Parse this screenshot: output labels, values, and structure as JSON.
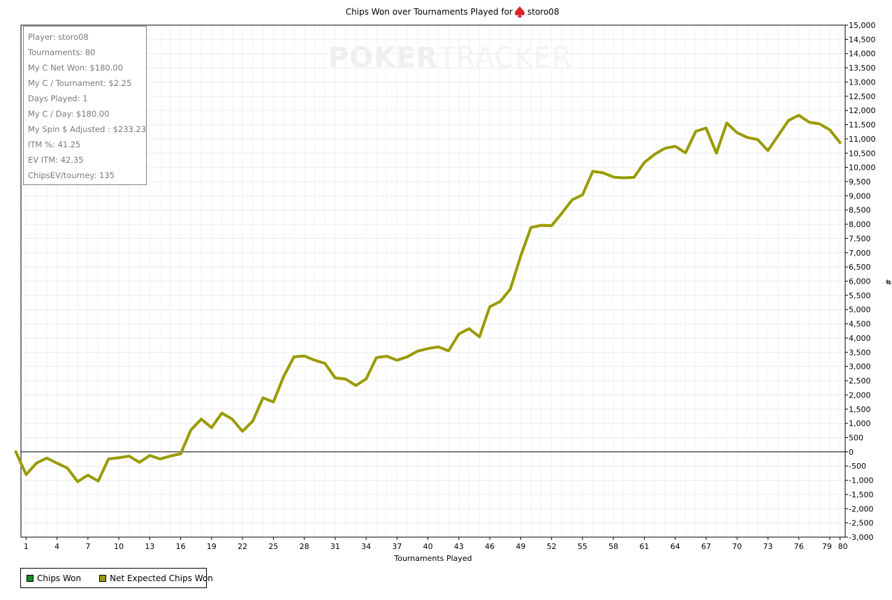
{
  "chart_data": {
    "type": "line",
    "title_prefix": "Chips Won over Tournaments Played for",
    "title_player": "storo08",
    "title_icon": "spade-icon",
    "xlabel": "Tournaments Played",
    "ylabel": "#",
    "xlim": [
      0.5,
      80.5
    ],
    "ylim": [
      -3000,
      15000
    ],
    "y_tick_step": 500,
    "x_ticks": [
      1,
      4,
      7,
      10,
      13,
      16,
      19,
      22,
      25,
      28,
      31,
      34,
      37,
      40,
      43,
      46,
      49,
      52,
      55,
      58,
      61,
      64,
      67,
      70,
      73,
      76,
      79,
      80
    ],
    "x_tick_labels": [
      "1",
      "4",
      "7",
      "10",
      "13",
      "16",
      "19",
      "22",
      "25",
      "28",
      "31",
      "34",
      "37",
      "40",
      "43",
      "46",
      "49",
      "52",
      "55",
      "58",
      "61",
      "64",
      "67",
      "70",
      "73",
      "76",
      "79",
      "80"
    ],
    "grid": true,
    "legend_position": "bottom-left",
    "series": [
      {
        "name": "Chips Won",
        "color": "#1a8a1a",
        "values": []
      },
      {
        "name": "Net Expected Chips Won",
        "color": "#9a9a00",
        "x": [
          0,
          1,
          2,
          3,
          4,
          5,
          6,
          7,
          8,
          9,
          10,
          11,
          12,
          13,
          14,
          15,
          16,
          17,
          18,
          19,
          20,
          21,
          22,
          23,
          24,
          25,
          26,
          27,
          28,
          29,
          30,
          31,
          32,
          33,
          34,
          35,
          36,
          37,
          38,
          39,
          40,
          41,
          42,
          43,
          44,
          45,
          46,
          47,
          48,
          49,
          50,
          51,
          52,
          53,
          54,
          55,
          56,
          57,
          58,
          59,
          60,
          61,
          62,
          63,
          64,
          65,
          66,
          67,
          68,
          69,
          70,
          71,
          72,
          73,
          74,
          75,
          76,
          77,
          78,
          79,
          80
        ],
        "values": [
          0,
          -800,
          -400,
          -220,
          -400,
          -570,
          -1050,
          -820,
          -1030,
          -250,
          -210,
          -150,
          -370,
          -130,
          -250,
          -150,
          -70,
          770,
          1150,
          850,
          1360,
          1150,
          720,
          1080,
          1900,
          1750,
          2650,
          3340,
          3370,
          3220,
          3110,
          2600,
          2560,
          2330,
          2560,
          3310,
          3360,
          3220,
          3340,
          3540,
          3630,
          3690,
          3550,
          4140,
          4330,
          4040,
          5100,
          5280,
          5720,
          6880,
          7890,
          7960,
          7950,
          8390,
          8860,
          9030,
          9860,
          9810,
          9660,
          9630,
          9650,
          10170,
          10460,
          10670,
          10740,
          10510,
          11270,
          11380,
          10500,
          11560,
          11220,
          11050,
          10980,
          10590,
          11120,
          11650,
          11830,
          11590,
          11530,
          11320,
          10870
        ]
      }
    ]
  },
  "stats_box": {
    "lines": [
      "Player: storo08",
      "Tournaments: 80",
      "My C Net Won: $180.00",
      "My C / Tournament: $2.25",
      "Days Played: 1",
      "My C / Day: $180.00",
      "My Spin $ Adjusted : $233.23",
      "ITM %: 41.25",
      "EV ITM: 42.35",
      "ChipsEV/tourney: 135"
    ]
  },
  "watermark": {
    "bold": "POKER",
    "light": "TRACKER"
  },
  "legend": {
    "items": [
      {
        "label": "Chips Won",
        "color": "#1a8a1a"
      },
      {
        "label": "Net Expected Chips Won",
        "color": "#9a9a00"
      }
    ]
  }
}
